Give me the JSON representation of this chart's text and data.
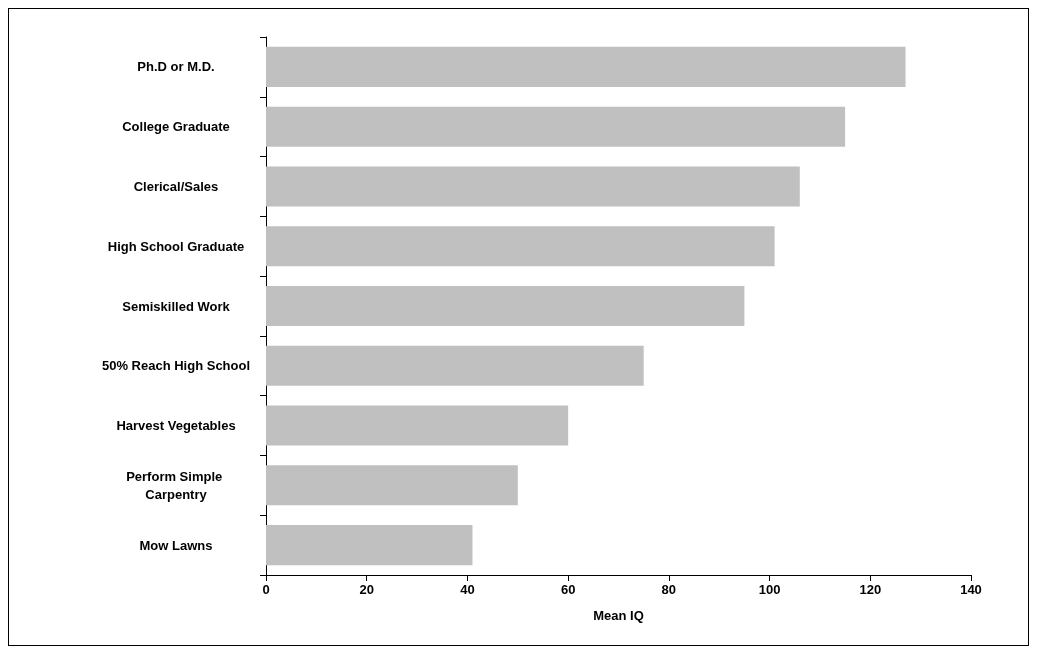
{
  "chart_data": {
    "type": "bar",
    "orientation": "horizontal",
    "xlabel": "Mean IQ",
    "categories": [
      "Ph.D or M.D.",
      "College Graduate",
      "Clerical/Sales",
      "High School Graduate",
      "Semiskilled Work",
      "50% Reach High School",
      "Harvest Vegetables",
      "Perform Simple Carpentry",
      "Mow Lawns"
    ],
    "values": [
      127,
      115,
      106,
      101,
      95,
      75,
      60,
      50,
      41
    ],
    "color": "#c0c0c0",
    "xlim": [
      0,
      140
    ],
    "xticks": [
      0,
      20,
      40,
      60,
      80,
      100,
      120,
      140
    ],
    "grid": false
  }
}
